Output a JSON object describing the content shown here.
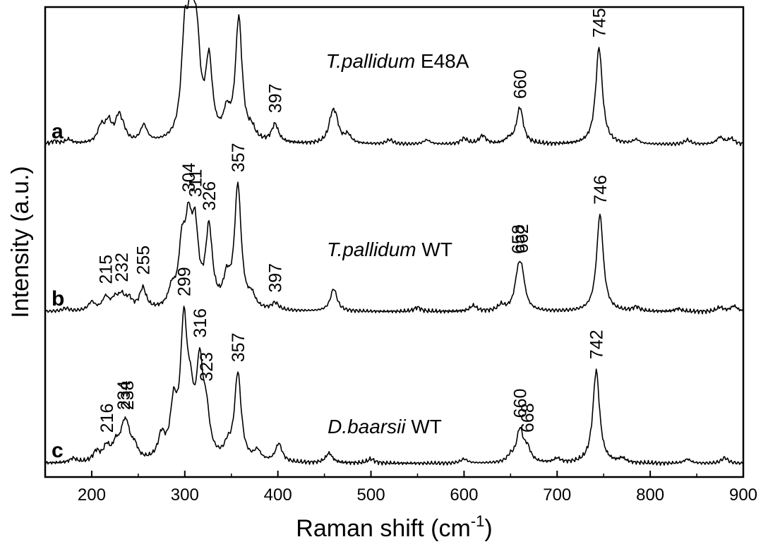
{
  "chart_data": {
    "type": "line",
    "xlabel": "Raman shift (cm",
    "xlabel_sup": "-1",
    "xlabel_close": ")",
    "ylabel": "Intensity (a.u.)",
    "xlim": [
      150,
      900
    ],
    "x_ticks": [
      200,
      300,
      400,
      500,
      600,
      700,
      800,
      900
    ],
    "x_tick_labels": [
      "200",
      "300",
      "400",
      "500",
      "600",
      "700",
      "800",
      "900"
    ],
    "grid": false,
    "series": [
      {
        "letter": "a",
        "name_italic": "T.pallidum",
        "name_rest": " E48A",
        "peaks": [
          {
            "x": 160,
            "h": 0.02
          },
          {
            "x": 175,
            "h": 0.03
          },
          {
            "x": 210,
            "h": 0.11
          },
          {
            "x": 218,
            "h": 0.14
          },
          {
            "x": 229,
            "h": 0.17
          },
          {
            "x": 234,
            "h": 0.06
          },
          {
            "x": 256,
            "h": 0.12
          },
          {
            "x": 300,
            "h": 0.68
          },
          {
            "x": 307,
            "h": 0.74
          },
          {
            "x": 313,
            "h": 0.56
          },
          {
            "x": 326,
            "h": 0.54
          },
          {
            "x": 345,
            "h": 0.17
          },
          {
            "x": 358,
            "h": 0.87
          },
          {
            "x": 372,
            "h": 0.07
          },
          {
            "x": 397,
            "h": 0.13
          },
          {
            "x": 458,
            "h": 0.15
          },
          {
            "x": 462,
            "h": 0.14
          },
          {
            "x": 475,
            "h": 0.06
          },
          {
            "x": 520,
            "h": 0.03
          },
          {
            "x": 560,
            "h": 0.03
          },
          {
            "x": 600,
            "h": 0.04
          },
          {
            "x": 620,
            "h": 0.06
          },
          {
            "x": 648,
            "h": 0.03
          },
          {
            "x": 660,
            "h": 0.26
          },
          {
            "x": 745,
            "h": 0.69
          },
          {
            "x": 785,
            "h": 0.03
          },
          {
            "x": 840,
            "h": 0.03
          },
          {
            "x": 875,
            "h": 0.05
          },
          {
            "x": 887,
            "h": 0.04
          }
        ],
        "labels": [
          {
            "text": "397",
            "x": 397,
            "h": 0.13
          },
          {
            "text": "660",
            "x": 660,
            "h": 0.26
          },
          {
            "text": "745",
            "x": 745,
            "h": 0.69
          }
        ]
      },
      {
        "letter": "b",
        "name_italic": "T.pallidum",
        "name_rest": " WT",
        "peaks": [
          {
            "x": 172,
            "h": 0.02
          },
          {
            "x": 200,
            "h": 0.06
          },
          {
            "x": 215,
            "h": 0.09
          },
          {
            "x": 225,
            "h": 0.07
          },
          {
            "x": 232,
            "h": 0.09
          },
          {
            "x": 240,
            "h": 0.07
          },
          {
            "x": 255,
            "h": 0.15
          },
          {
            "x": 286,
            "h": 0.12
          },
          {
            "x": 297,
            "h": 0.4
          },
          {
            "x": 304,
            "h": 0.5
          },
          {
            "x": 311,
            "h": 0.5
          },
          {
            "x": 326,
            "h": 0.55
          },
          {
            "x": 345,
            "h": 0.18
          },
          {
            "x": 357,
            "h": 0.87
          },
          {
            "x": 372,
            "h": 0.08
          },
          {
            "x": 397,
            "h": 0.05
          },
          {
            "x": 460,
            "h": 0.16
          },
          {
            "x": 550,
            "h": 0.03
          },
          {
            "x": 610,
            "h": 0.04
          },
          {
            "x": 640,
            "h": 0.04
          },
          {
            "x": 658,
            "h": 0.21
          },
          {
            "x": 662,
            "h": 0.22
          },
          {
            "x": 746,
            "h": 0.69
          },
          {
            "x": 785,
            "h": 0.03
          },
          {
            "x": 830,
            "h": 0.02
          },
          {
            "x": 875,
            "h": 0.03
          },
          {
            "x": 890,
            "h": 0.04
          }
        ],
        "labels": [
          {
            "text": "215",
            "x": 215,
            "h": 0.09
          },
          {
            "text": "232",
            "x": 232,
            "h": 0.09
          },
          {
            "text": "255",
            "x": 255,
            "h": 0.15
          },
          {
            "text": "304",
            "x": 304,
            "h": 0.5
          },
          {
            "text": "311",
            "x": 311,
            "h": 0.5
          },
          {
            "text": "326",
            "x": 326,
            "h": 0.55
          },
          {
            "text": "357",
            "x": 357,
            "h": 0.87
          },
          {
            "text": "397",
            "x": 397,
            "h": 0.05
          },
          {
            "text": "658",
            "x": 658,
            "h": 0.21
          },
          {
            "text": "662",
            "x": 662,
            "h": 0.22
          },
          {
            "text": "746",
            "x": 746,
            "h": 0.69
          }
        ]
      },
      {
        "letter": "c",
        "name_italic": "D.baarsii",
        "name_rest": " WT",
        "peaks": [
          {
            "x": 180,
            "h": 0.03
          },
          {
            "x": 205,
            "h": 0.07
          },
          {
            "x": 216,
            "h": 0.1
          },
          {
            "x": 226,
            "h": 0.11
          },
          {
            "x": 234,
            "h": 0.16
          },
          {
            "x": 238,
            "h": 0.17
          },
          {
            "x": 246,
            "h": 0.09
          },
          {
            "x": 275,
            "h": 0.16
          },
          {
            "x": 288,
            "h": 0.35
          },
          {
            "x": 299,
            "h": 0.92
          },
          {
            "x": 306,
            "h": 0.32
          },
          {
            "x": 316,
            "h": 0.62
          },
          {
            "x": 323,
            "h": 0.28
          },
          {
            "x": 346,
            "h": 0.08
          },
          {
            "x": 357,
            "h": 0.62
          },
          {
            "x": 378,
            "h": 0.07
          },
          {
            "x": 401,
            "h": 0.13
          },
          {
            "x": 455,
            "h": 0.07
          },
          {
            "x": 500,
            "h": 0.03
          },
          {
            "x": 600,
            "h": 0.03
          },
          {
            "x": 650,
            "h": 0.04
          },
          {
            "x": 660,
            "h": 0.23
          },
          {
            "x": 668,
            "h": 0.09
          },
          {
            "x": 700,
            "h": 0.03
          },
          {
            "x": 742,
            "h": 0.66
          },
          {
            "x": 770,
            "h": 0.03
          },
          {
            "x": 840,
            "h": 0.03
          },
          {
            "x": 880,
            "h": 0.04
          }
        ],
        "labels": [
          {
            "text": "216",
            "x": 216,
            "h": 0.1
          },
          {
            "text": "234",
            "x": 234,
            "h": 0.16
          },
          {
            "text": "238",
            "x": 238,
            "h": 0.17
          },
          {
            "text": "299",
            "x": 299,
            "h": 0.92
          },
          {
            "text": "316",
            "x": 316,
            "h": 0.62
          },
          {
            "text": "323",
            "x": 323,
            "h": 0.28
          },
          {
            "text": "357",
            "x": 357,
            "h": 0.62
          },
          {
            "text": "660",
            "x": 660,
            "h": 0.23
          },
          {
            "text": "668",
            "x": 668,
            "h": 0.09
          },
          {
            "text": "742",
            "x": 742,
            "h": 0.66
          }
        ]
      }
    ]
  }
}
